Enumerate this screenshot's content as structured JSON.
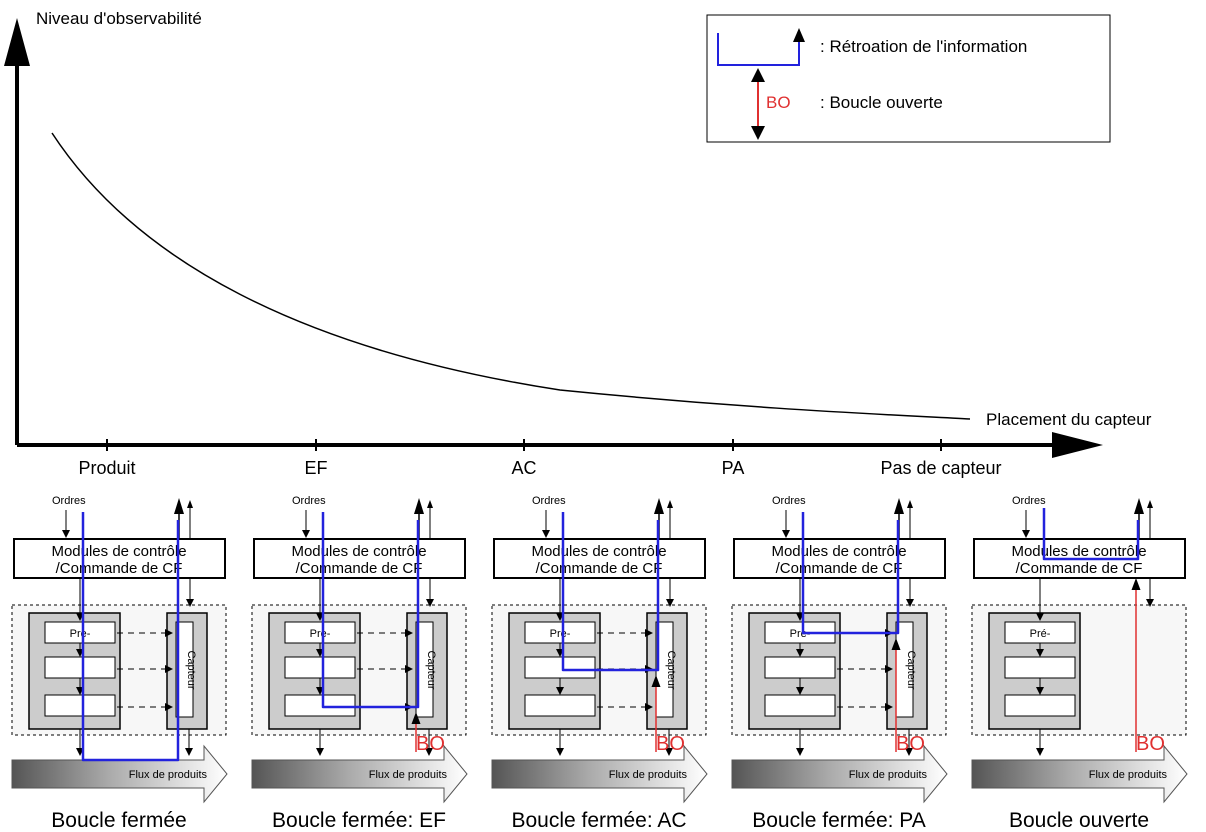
{
  "axes": {
    "y_label": "Niveau d'observabilité",
    "x_label": "Placement du capteur",
    "ticks": [
      "Produit",
      "EF",
      "AC",
      "PA",
      "Pas de capteur"
    ]
  },
  "legend": {
    "feedback_label": ": Rétroation de l'information",
    "open_loop_label": ": Boucle ouverte",
    "open_loop_tag": "BO"
  },
  "colors": {
    "feedback": "#2222dd",
    "open_loop": "#e03030",
    "module_fill": "#cccccc"
  },
  "panel_text": {
    "orders": "Ordres",
    "modules_line1": "Modules de contrôle",
    "modules_line2": "/Commande de CF",
    "flow": "Flux de produits",
    "sensor": "Capteur",
    "bo": "BO"
  },
  "panels": [
    {
      "caption": "Boucle fermée",
      "pre_label": "Pre-",
      "sensor_at": "product"
    },
    {
      "caption": "Boucle fermée: EF",
      "pre_label": "Pre-",
      "sensor_at": "EF"
    },
    {
      "caption": "Boucle fermée: AC",
      "pre_label": "Pre-",
      "sensor_at": "AC"
    },
    {
      "caption": "Boucle fermée: PA",
      "pre_label": "Pre-",
      "sensor_at": "PA"
    },
    {
      "caption": "Boucle ouverte",
      "pre_label": "Pré-",
      "sensor_at": "none"
    }
  ]
}
